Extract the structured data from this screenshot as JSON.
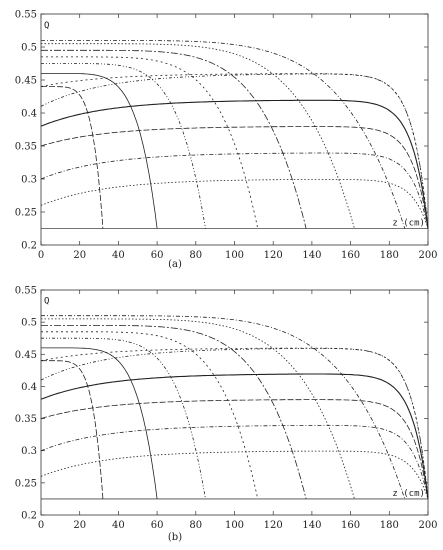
{
  "chart_data": [
    {
      "type": "line",
      "panel_label": "(a)",
      "ylabel": "Q",
      "xlabel": "z (cm)",
      "xlim": [
        0,
        200
      ],
      "ylim": [
        0.2,
        0.55
      ],
      "xticks": [
        0,
        20,
        40,
        60,
        80,
        100,
        120,
        140,
        160,
        180,
        200
      ],
      "yticks": [
        0.2,
        0.25,
        0.3,
        0.35,
        0.4,
        0.45,
        0.5,
        0.55
      ],
      "baseline": 0.225,
      "families": {
        "horizontal": [
          {
            "start": 0.26,
            "peak": 0.3,
            "z0": 200
          },
          {
            "start": 0.3,
            "peak": 0.34,
            "z0": 200
          },
          {
            "start": 0.35,
            "peak": 0.38,
            "z0": 200
          },
          {
            "start": 0.38,
            "peak": 0.42,
            "z0": 200
          },
          {
            "start": 0.41,
            "peak": 0.46,
            "z0": 200
          },
          {
            "start": 0.44,
            "peak": 0.46,
            "z0": 200
          }
        ],
        "vertical": [
          {
            "start": 0.44,
            "zend": 32
          },
          {
            "start": 0.46,
            "zend": 60
          },
          {
            "start": 0.475,
            "zend": 85
          },
          {
            "start": 0.485,
            "zend": 112
          },
          {
            "start": 0.495,
            "zend": 137
          },
          {
            "start": 0.505,
            "zend": 162
          },
          {
            "start": 0.51,
            "zend": 188
          }
        ]
      }
    },
    {
      "type": "line",
      "panel_label": "(b)",
      "ylabel": "Q",
      "xlabel": "z (cm)",
      "xlim": [
        0,
        200
      ],
      "ylim": [
        0.2,
        0.55
      ],
      "xticks": [
        0,
        20,
        40,
        60,
        80,
        100,
        120,
        140,
        160,
        180,
        200
      ],
      "yticks": [
        0.2,
        0.25,
        0.3,
        0.35,
        0.4,
        0.45,
        0.5,
        0.55
      ],
      "baseline": 0.225,
      "families": {
        "horizontal": [
          {
            "start": 0.26,
            "peak": 0.3,
            "z0": 200
          },
          {
            "start": 0.3,
            "peak": 0.34,
            "z0": 200
          },
          {
            "start": 0.35,
            "peak": 0.38,
            "z0": 200
          },
          {
            "start": 0.38,
            "peak": 0.42,
            "z0": 200
          },
          {
            "start": 0.41,
            "peak": 0.46,
            "z0": 200
          },
          {
            "start": 0.44,
            "peak": 0.46,
            "z0": 200
          }
        ],
        "vertical": [
          {
            "start": 0.44,
            "zend": 32
          },
          {
            "start": 0.46,
            "zend": 60
          },
          {
            "start": 0.475,
            "zend": 85
          },
          {
            "start": 0.485,
            "zend": 112
          },
          {
            "start": 0.495,
            "zend": 137
          },
          {
            "start": 0.505,
            "zend": 162
          },
          {
            "start": 0.51,
            "zend": 188
          }
        ]
      }
    }
  ]
}
